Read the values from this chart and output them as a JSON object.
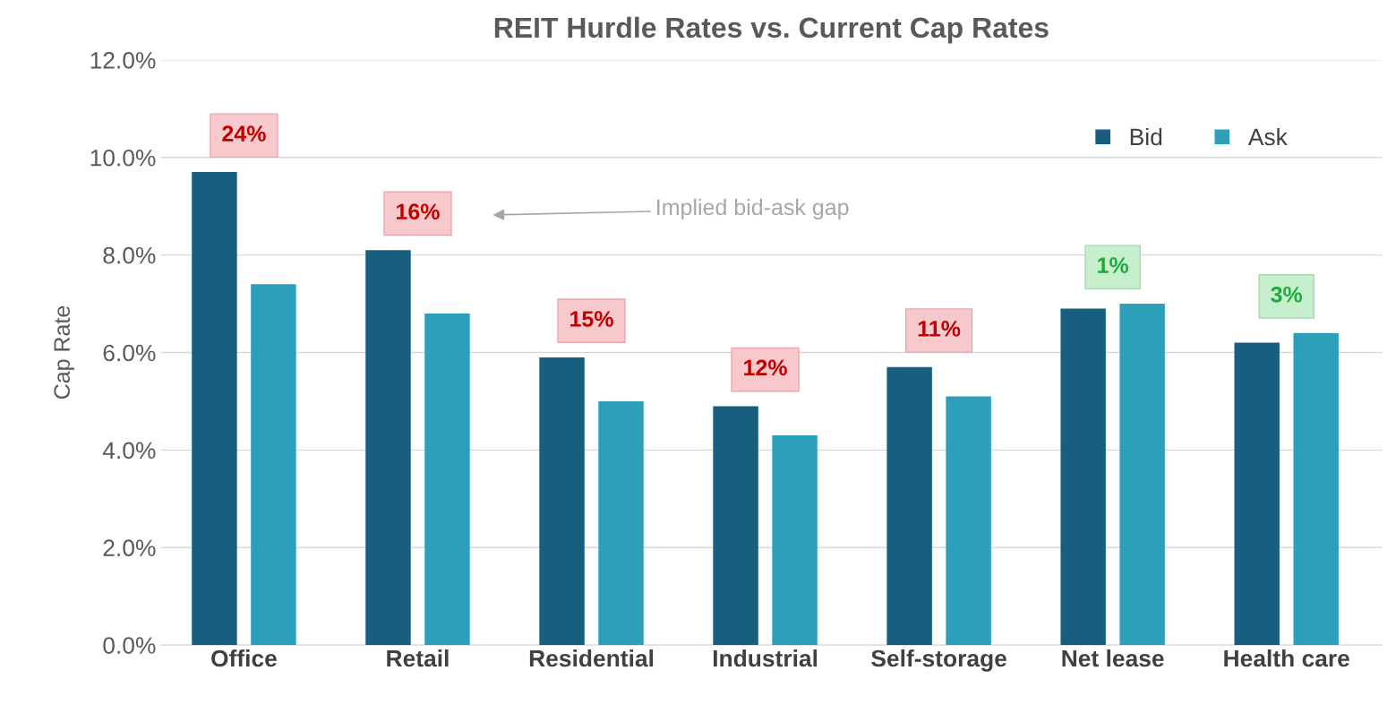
{
  "chart_data": {
    "type": "bar",
    "title": "REIT Hurdle Rates vs. Current Cap Rates",
    "ylabel": "Cap Rate",
    "categories": [
      "Office",
      "Retail",
      "Residential",
      "Industrial",
      "Self-storage",
      "Net lease",
      "Health care"
    ],
    "series": [
      {
        "name": "Bid",
        "color": "#175e7f",
        "values": [
          9.7,
          8.1,
          5.9,
          4.9,
          5.7,
          6.9,
          6.2
        ]
      },
      {
        "name": "Ask",
        "color": "#2e9fba",
        "values": [
          7.4,
          6.8,
          5.0,
          4.3,
          5.1,
          7.0,
          6.4
        ]
      }
    ],
    "ylim": [
      0,
      12
    ],
    "yticks": [
      {
        "value": 0,
        "label": "0.0%"
      },
      {
        "value": 2,
        "label": "2.0%"
      },
      {
        "value": 4,
        "label": "4.0%"
      },
      {
        "value": 6,
        "label": "6.0%"
      },
      {
        "value": 8,
        "label": "8.0%"
      },
      {
        "value": 10,
        "label": "10.0%"
      },
      {
        "value": 12,
        "label": "12.0%"
      }
    ],
    "grid": "y",
    "legend": "top right",
    "annotations": [
      "24%",
      "16%",
      "15%",
      "12%",
      "11%",
      "1%",
      "3%",
      "Implied bid-ask gap"
    ]
  }
}
